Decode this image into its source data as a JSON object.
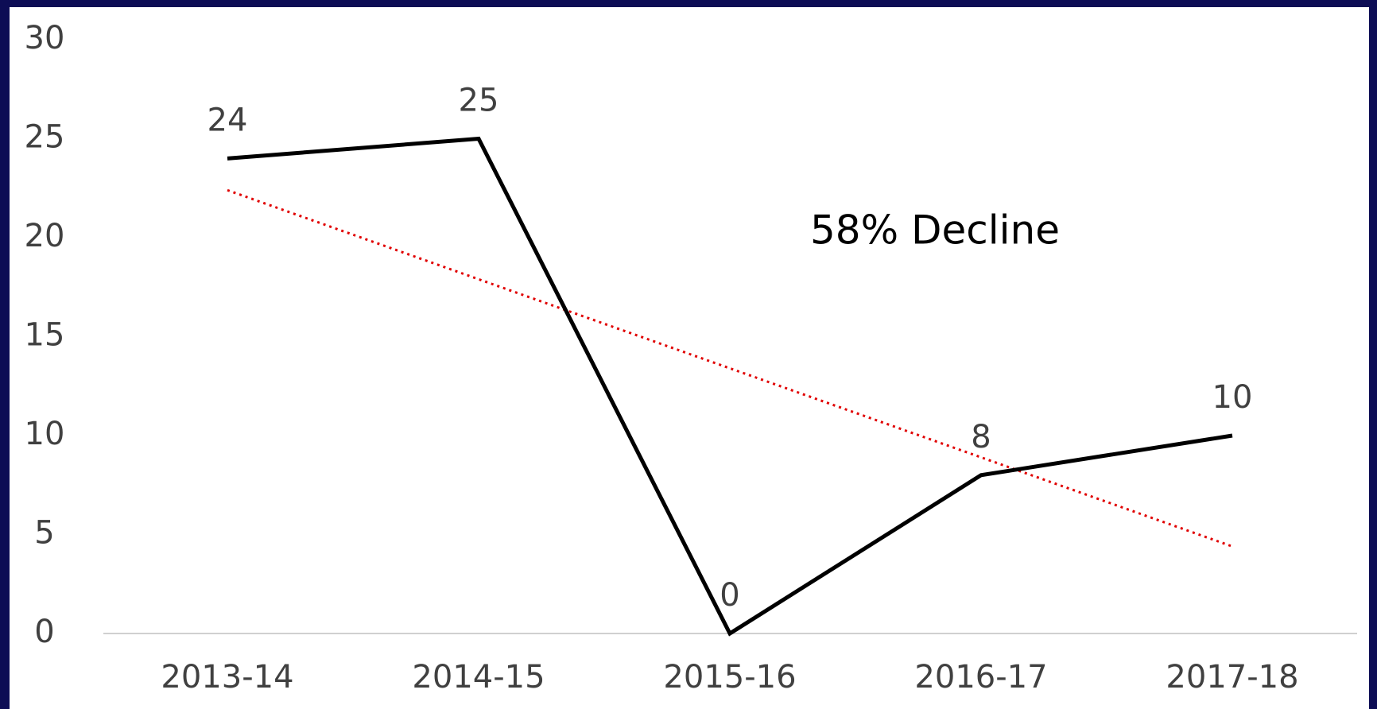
{
  "chart_data": {
    "type": "line",
    "categories": [
      "2013-14",
      "2014-15",
      "2015-16",
      "2016-17",
      "2017-18"
    ],
    "series": [
      {
        "color": "#000000",
        "values": [
          24,
          25,
          0,
          8,
          10
        ]
      }
    ],
    "trendline": {
      "color": "#e00000",
      "values": [
        22.4,
        17.9,
        13.4,
        8.9,
        4.4
      ]
    },
    "annotations": [
      "58% Decline"
    ],
    "ylim": [
      0,
      30
    ],
    "yticks": [
      0,
      5,
      10,
      15,
      20,
      25,
      30
    ],
    "grid": false
  }
}
